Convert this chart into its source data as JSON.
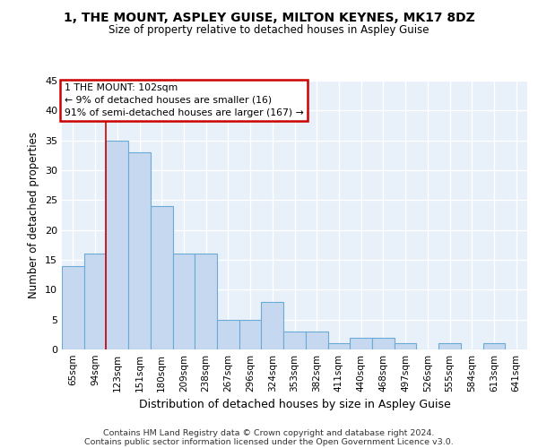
{
  "title1": "1, THE MOUNT, ASPLEY GUISE, MILTON KEYNES, MK17 8DZ",
  "title2": "Size of property relative to detached houses in Aspley Guise",
  "xlabel": "Distribution of detached houses by size in Aspley Guise",
  "ylabel": "Number of detached properties",
  "categories": [
    "65sqm",
    "94sqm",
    "123sqm",
    "151sqm",
    "180sqm",
    "209sqm",
    "238sqm",
    "267sqm",
    "296sqm",
    "324sqm",
    "353sqm",
    "382sqm",
    "411sqm",
    "440sqm",
    "468sqm",
    "497sqm",
    "526sqm",
    "555sqm",
    "584sqm",
    "613sqm",
    "641sqm"
  ],
  "values": [
    14,
    16,
    35,
    33,
    24,
    16,
    16,
    5,
    5,
    8,
    3,
    3,
    1,
    2,
    2,
    1,
    0,
    1,
    0,
    1,
    0
  ],
  "bar_color": "#c5d8f0",
  "bar_edge_color": "#6aaad4",
  "background_color": "#e8f0fa",
  "grid_color": "#ffffff",
  "vline_x": 1.5,
  "vline_color": "#cc0000",
  "annotation_lines": [
    "1 THE MOUNT: 102sqm",
    "← 9% of detached houses are smaller (16)",
    "91% of semi-detached houses are larger (167) →"
  ],
  "annotation_box_color": "#ffffff",
  "annotation_box_edge_color": "#cc0000",
  "footer1": "Contains HM Land Registry data © Crown copyright and database right 2024.",
  "footer2": "Contains public sector information licensed under the Open Government Licence v3.0.",
  "ylim": [
    0,
    45
  ],
  "yticks": [
    0,
    5,
    10,
    15,
    20,
    25,
    30,
    35,
    40,
    45
  ]
}
